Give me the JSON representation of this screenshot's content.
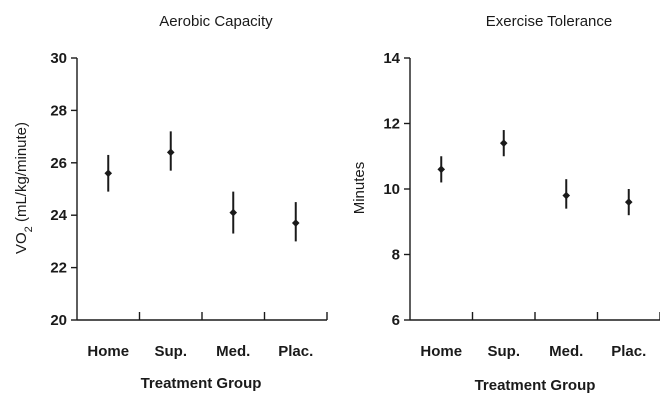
{
  "chart_data": [
    {
      "type": "scatter",
      "title": "Aerobic Capacity",
      "xlabel": "Treatment Group",
      "ylabel": "VO2 (mL/kg/minute)",
      "ylabel_main": "VO",
      "ylabel_sub": "2",
      "ylabel_rest": " (mL/kg/minute)",
      "categories": [
        "Home",
        "Sup.",
        "Med.",
        "Plac."
      ],
      "values": [
        25.6,
        26.4,
        24.1,
        23.7
      ],
      "error_low": [
        24.9,
        25.7,
        23.3,
        23.0
      ],
      "error_high": [
        26.3,
        27.2,
        24.9,
        24.5
      ],
      "ylim": [
        20,
        30
      ],
      "yticks": [
        "20",
        "22",
        "24",
        "26",
        "28",
        "30"
      ],
      "grid": false
    },
    {
      "type": "scatter",
      "title": "Exercise Tolerance",
      "xlabel": "Treatment Group",
      "ylabel": "Minutes",
      "categories": [
        "Home",
        "Sup.",
        "Med.",
        "Plac."
      ],
      "values": [
        10.6,
        11.4,
        9.8,
        9.6
      ],
      "error_low": [
        10.2,
        11.0,
        9.4,
        9.2
      ],
      "error_high": [
        11.0,
        11.8,
        10.3,
        10.0
      ],
      "ylim": [
        6,
        14
      ],
      "yticks": [
        "6",
        "8",
        "10",
        "12",
        "14"
      ],
      "grid": false
    }
  ]
}
